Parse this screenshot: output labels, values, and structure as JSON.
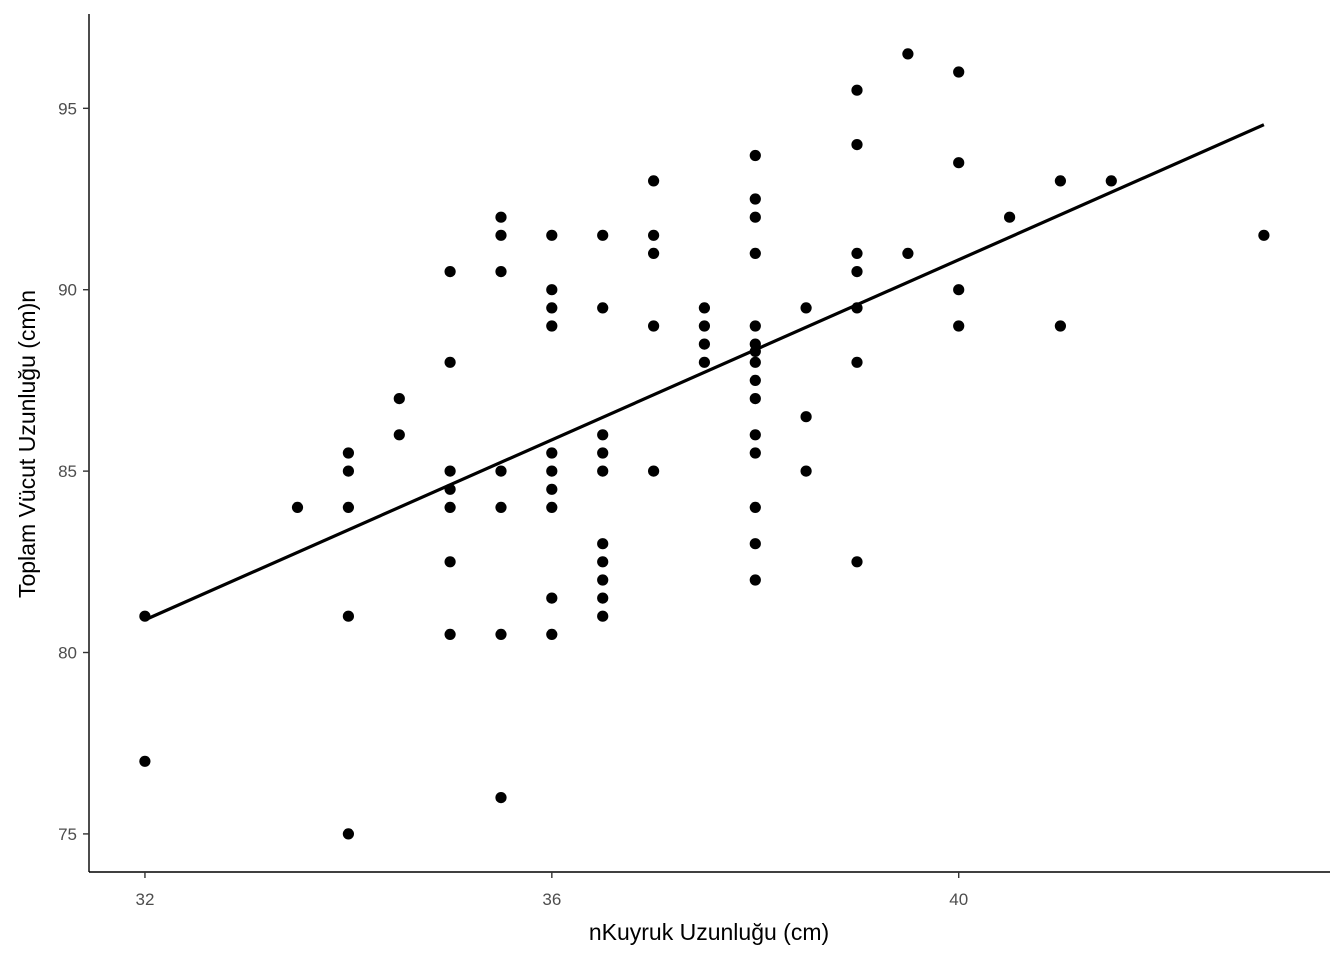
{
  "chart_data": {
    "type": "scatter",
    "xlabel": "nKuyruk Uzunluğu (cm)",
    "ylabel": "Toplam Vücut Uzunluğu (cm)n",
    "xlim": [
      31.45,
      43.65
    ],
    "ylim": [
      73.95,
      97.6
    ],
    "x_ticks": [
      32,
      36,
      40
    ],
    "y_ticks": [
      75,
      80,
      85,
      90,
      95
    ],
    "grid": false,
    "legend": "none",
    "points": [
      [
        32,
        81
      ],
      [
        32,
        77
      ],
      [
        33.5,
        84
      ],
      [
        34,
        85.5
      ],
      [
        34,
        85
      ],
      [
        34,
        84
      ],
      [
        34,
        81
      ],
      [
        34,
        75
      ],
      [
        34.5,
        87
      ],
      [
        34.5,
        86
      ],
      [
        35,
        90.5
      ],
      [
        35,
        88
      ],
      [
        35,
        85
      ],
      [
        35,
        84.5
      ],
      [
        35,
        84
      ],
      [
        35,
        82.5
      ],
      [
        35,
        80.5
      ],
      [
        35.5,
        92
      ],
      [
        35.5,
        91.5
      ],
      [
        35.5,
        90.5
      ],
      [
        35.5,
        85
      ],
      [
        35.5,
        84
      ],
      [
        35.5,
        80.5
      ],
      [
        35.5,
        76
      ],
      [
        36,
        91.5
      ],
      [
        36,
        90
      ],
      [
        36,
        89.5
      ],
      [
        36,
        89
      ],
      [
        36,
        85.5
      ],
      [
        36,
        85
      ],
      [
        36,
        84.5
      ],
      [
        36,
        84
      ],
      [
        36,
        81.5
      ],
      [
        36,
        80.5
      ],
      [
        36.5,
        91.5
      ],
      [
        36.5,
        89.5
      ],
      [
        36.5,
        86
      ],
      [
        36.5,
        85.5
      ],
      [
        36.5,
        85
      ],
      [
        36.5,
        83
      ],
      [
        36.5,
        82.5
      ],
      [
        36.5,
        82
      ],
      [
        36.5,
        81.5
      ],
      [
        36.5,
        81
      ],
      [
        37,
        93
      ],
      [
        37,
        91.5
      ],
      [
        37,
        91
      ],
      [
        37,
        89
      ],
      [
        37,
        85
      ],
      [
        37.5,
        89.5
      ],
      [
        37.5,
        89
      ],
      [
        37.5,
        88.5
      ],
      [
        37.5,
        88
      ],
      [
        38,
        93.7
      ],
      [
        38,
        92.5
      ],
      [
        38,
        92
      ],
      [
        38,
        91
      ],
      [
        38,
        89
      ],
      [
        38,
        88.5
      ],
      [
        38,
        88.3
      ],
      [
        38,
        88
      ],
      [
        38,
        87.5
      ],
      [
        38,
        87
      ],
      [
        38,
        86
      ],
      [
        38,
        85.5
      ],
      [
        38,
        84
      ],
      [
        38,
        83
      ],
      [
        38,
        82
      ],
      [
        38.5,
        89.5
      ],
      [
        38.5,
        86.5
      ],
      [
        38.5,
        85
      ],
      [
        39,
        95.5
      ],
      [
        39,
        94
      ],
      [
        39,
        91
      ],
      [
        39,
        90.5
      ],
      [
        39,
        89.5
      ],
      [
        39,
        88
      ],
      [
        39,
        82.5
      ],
      [
        39.5,
        96.5
      ],
      [
        39.5,
        91
      ],
      [
        40,
        96
      ],
      [
        40,
        93.5
      ],
      [
        40,
        90
      ],
      [
        40,
        89
      ],
      [
        40.5,
        92
      ],
      [
        41,
        93
      ],
      [
        41,
        89
      ],
      [
        41.5,
        93
      ],
      [
        43,
        91.5
      ]
    ],
    "fit_line": {
      "x": [
        32,
        43
      ],
      "y": [
        80.9,
        94.55
      ]
    }
  }
}
